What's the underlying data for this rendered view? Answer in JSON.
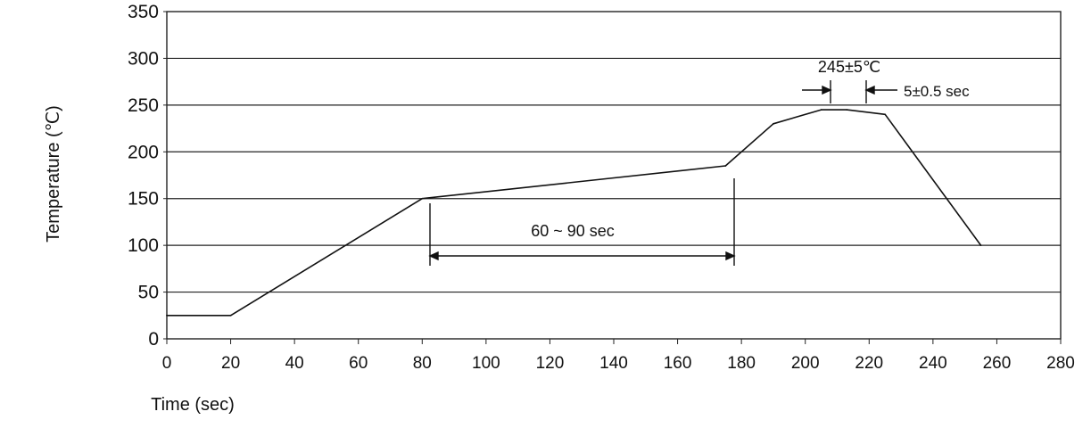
{
  "chart_data": {
    "type": "line",
    "title": "",
    "xlabel": "Time (sec)",
    "ylabel": "Temperature (℃)",
    "xlim": [
      0,
      280
    ],
    "ylim": [
      0,
      350
    ],
    "y_ticks": [
      "0",
      "50",
      "100",
      "150",
      "200",
      "250",
      "300",
      "350"
    ],
    "x_ticks": [
      "0",
      "20",
      "40",
      "60",
      "80",
      "100",
      "120",
      "140",
      "160",
      "180",
      "200",
      "220",
      "240",
      "260",
      "280"
    ],
    "grid": {
      "horizontal": true,
      "vertical": false
    },
    "series": [
      {
        "x": [
          0,
          20,
          80,
          175,
          190,
          205,
          213,
          225,
          255
        ],
        "y": [
          25,
          25,
          150,
          185,
          230,
          245,
          245,
          240,
          100
        ]
      }
    ],
    "annotations": {
      "peak_temp": "245±5℃",
      "peak_time": "5±0.5 sec",
      "soak_time": "60 ~ 90 sec"
    }
  }
}
